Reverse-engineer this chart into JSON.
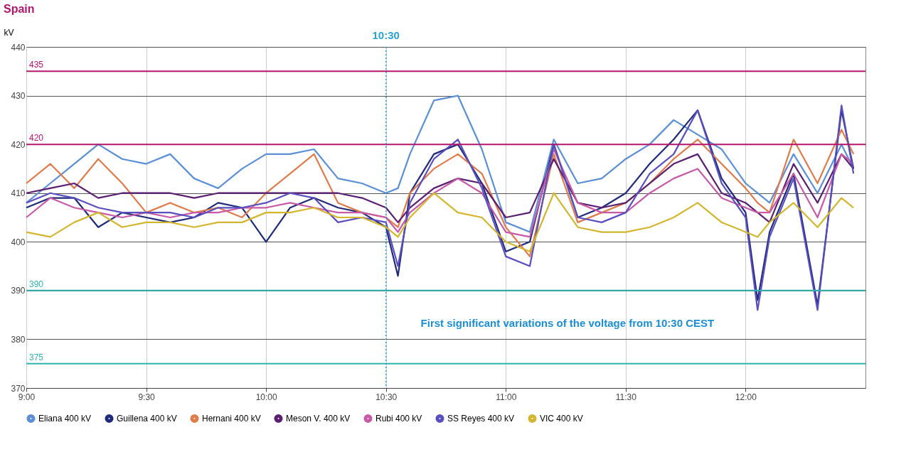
{
  "chart_data": {
    "type": "line",
    "title": "Spain",
    "ylabel": "kV",
    "x": [
      9.0,
      9.1,
      9.2,
      9.3,
      9.4,
      9.5,
      9.6,
      9.7,
      9.8,
      9.9,
      10.0,
      10.1,
      10.2,
      10.3,
      10.4,
      10.5,
      10.55,
      10.6,
      10.7,
      10.8,
      10.9,
      11.0,
      11.1,
      11.2,
      11.3,
      11.4,
      11.5,
      11.6,
      11.7,
      11.8,
      11.9,
      12.0,
      12.05,
      12.1,
      12.2,
      12.3,
      12.4,
      12.45
    ],
    "series": [
      {
        "name": "Eliana 400 kV",
        "color": "#5b8fd6",
        "values": [
          408,
          412,
          416,
          420,
          417,
          416,
          418,
          413,
          411,
          415,
          418,
          418,
          419,
          413,
          412,
          410,
          411,
          418,
          429,
          430,
          419,
          404,
          402,
          421,
          412,
          413,
          417,
          420,
          425,
          422,
          419,
          412,
          410,
          408,
          418,
          410,
          420,
          415
        ]
      },
      {
        "name": "Guillena 400 kV",
        "color": "#1f2a7a",
        "values": [
          407,
          409,
          409,
          403,
          406,
          405,
          404,
          405,
          408,
          407,
          400,
          407,
          409,
          407,
          406,
          403,
          393,
          410,
          418,
          420,
          412,
          398,
          400,
          420,
          405,
          407,
          410,
          416,
          421,
          427,
          413,
          406,
          388,
          402,
          414,
          387,
          427,
          415
        ]
      },
      {
        "name": "Hernani 400 kV",
        "color": "#e07b4a",
        "values": [
          412,
          416,
          411,
          417,
          412,
          406,
          408,
          406,
          407,
          405,
          410,
          414,
          418,
          408,
          406,
          405,
          403,
          410,
          415,
          418,
          414,
          403,
          397,
          418,
          404,
          406,
          408,
          412,
          417,
          421,
          416,
          411,
          408,
          406,
          421,
          412,
          423,
          418
        ]
      },
      {
        "name": "Meson V. 400 kV",
        "color": "#5a1f70",
        "values": [
          410,
          411,
          412,
          409,
          410,
          410,
          410,
          409,
          410,
          410,
          410,
          410,
          410,
          410,
          409,
          407,
          404,
          407,
          411,
          413,
          412,
          405,
          406,
          417,
          408,
          407,
          408,
          412,
          416,
          418,
          410,
          408,
          406,
          404,
          416,
          408,
          418,
          415
        ]
      },
      {
        "name": "Rubi 400 kV",
        "color": "#c85aa8",
        "values": [
          405,
          409,
          407,
          406,
          405,
          406,
          405,
          406,
          406,
          407,
          407,
          408,
          407,
          406,
          406,
          405,
          402,
          406,
          410,
          413,
          410,
          402,
          401,
          419,
          408,
          406,
          406,
          410,
          413,
          415,
          409,
          407,
          406,
          406,
          414,
          405,
          418,
          416
        ]
      },
      {
        "name": "SS Reyes 400 kV",
        "color": "#5a4fc0",
        "values": [
          408,
          410,
          409,
          407,
          406,
          406,
          406,
          405,
          407,
          407,
          408,
          410,
          409,
          404,
          405,
          404,
          395,
          408,
          417,
          421,
          411,
          397,
          395,
          420,
          405,
          404,
          406,
          414,
          418,
          427,
          412,
          405,
          386,
          401,
          413,
          386,
          428,
          414
        ]
      },
      {
        "name": "VIC 400 kV",
        "color": "#d4b62e",
        "values": [
          402,
          401,
          404,
          406,
          403,
          404,
          404,
          403,
          404,
          404,
          406,
          406,
          407,
          405,
          405,
          403,
          401,
          405,
          410,
          406,
          405,
          400,
          398,
          410,
          403,
          402,
          402,
          403,
          405,
          408,
          404,
          402,
          401,
          404,
          408,
          403,
          409,
          407
        ]
      }
    ],
    "xlim": [
      9,
      12.5
    ],
    "xticks": [
      {
        "value": 9,
        "label": "9:00"
      },
      {
        "value": 9.5,
        "label": "9:30"
      },
      {
        "value": 10,
        "label": "10:00"
      },
      {
        "value": 10.5,
        "label": "10:30"
      },
      {
        "value": 11,
        "label": "11:00"
      },
      {
        "value": 11.5,
        "label": "11:30"
      },
      {
        "value": 12,
        "label": "12:00"
      }
    ],
    "ylim": [
      370,
      440
    ],
    "yticks": [
      370,
      380,
      390,
      400,
      410,
      420,
      430,
      440
    ],
    "ref_lines": [
      {
        "axis": "y",
        "value": 435,
        "label": "435",
        "color": "#b5146e"
      },
      {
        "axis": "y",
        "value": 420,
        "label": "420",
        "color": "#b5146e"
      },
      {
        "axis": "y",
        "value": 390,
        "label": "390",
        "color": "#2fb5b0"
      },
      {
        "axis": "y",
        "value": 375,
        "label": "375",
        "color": "#2fb5b0"
      },
      {
        "axis": "x",
        "value": 10.5,
        "label": "10:30",
        "color": "#29a3d6",
        "line_style": "dotted"
      }
    ],
    "annotations": [
      "First significant variations of the voltage from 10:30 CEST"
    ],
    "grid": true,
    "legend": "bottom",
    "line_style": "solid"
  }
}
